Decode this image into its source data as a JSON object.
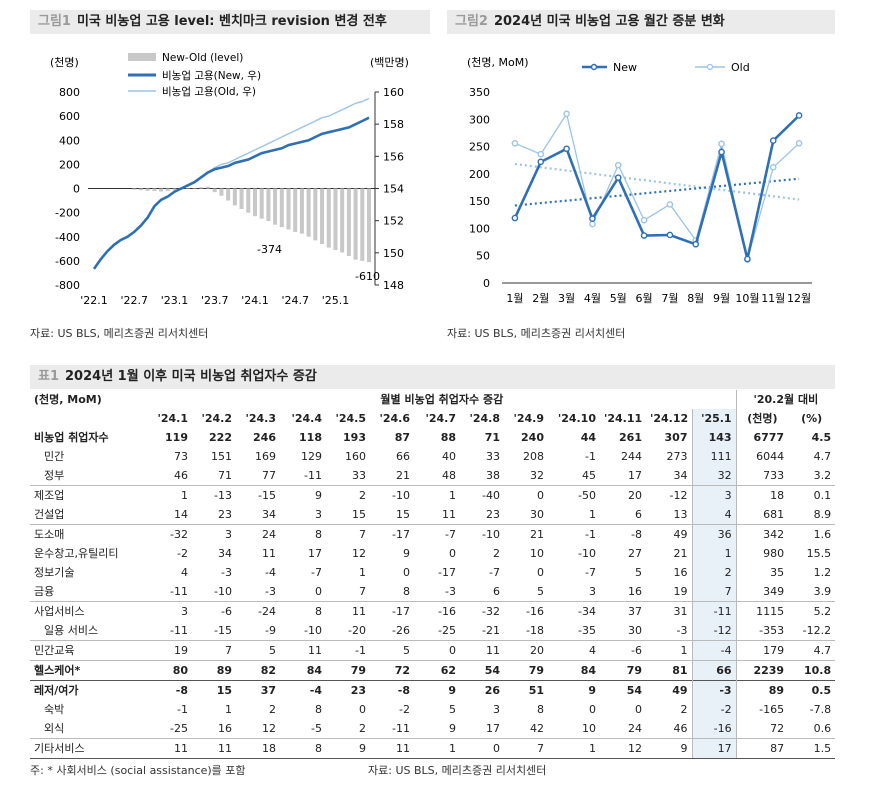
{
  "fig1": {
    "tag": "그림1",
    "title": "미국 비농업 고용 level: 벤치마크 revision 변경 전후",
    "left_unit": "(천명)",
    "right_unit": "(백만명)",
    "legend": [
      "New-Old (level)",
      "비농업 고용(New, 우)",
      "비농업 고용(Old, 우)"
    ],
    "annotations": [
      "-374",
      "-610"
    ],
    "source": "자료: US BLS, 메리츠증권 리서치센터",
    "colors": {
      "bar": "#c8c8c8",
      "new": "#2e6fb5",
      "old": "#9cc3e8"
    }
  },
  "fig2": {
    "tag": "그림2",
    "title": "2024년 미국 비농업 고용 월간 증분 변화",
    "unit": "(천명, MoM)",
    "legend": [
      "New",
      "Old"
    ],
    "source": "자료: US BLS, 메리츠증권 리서치센터",
    "colors": {
      "new": "#2e6fb5",
      "old": "#9cc3e8"
    }
  },
  "chart_data": [
    {
      "type": "bar",
      "x_ticks": [
        "'22.1",
        "'22.7",
        "'23.1",
        "'23.7",
        "'24.1",
        "'24.7",
        "'25.1"
      ],
      "y_left_ticks": [
        "800",
        "600",
        "400",
        "200",
        "0",
        "-200",
        "-400",
        "-600",
        "-800"
      ],
      "y_right_ticks": [
        "160",
        "158",
        "156",
        "154",
        "152",
        "150",
        "148"
      ],
      "ylim_left": [
        -800,
        800
      ],
      "ylim_right": [
        148,
        160
      ],
      "series": [
        {
          "name": "New-Old (level)",
          "type": "bar",
          "values": [
            0,
            0,
            0,
            0,
            0,
            0,
            -10,
            -15,
            -20,
            -20,
            -25,
            -20,
            -15,
            -10,
            -5,
            5,
            10,
            15,
            -30,
            -60,
            -100,
            -140,
            -170,
            -200,
            -230,
            -250,
            -270,
            -300,
            -320,
            -340,
            -360,
            -374,
            -400,
            -430,
            -460,
            -490,
            -510,
            -530,
            -560,
            -590,
            -600,
            -610
          ]
        },
        {
          "name": "비농업 고용(New, 우)",
          "type": "line",
          "values": [
            149.0,
            149.6,
            150.1,
            150.5,
            150.8,
            151.0,
            151.3,
            151.7,
            152.2,
            152.9,
            153.3,
            153.5,
            153.8,
            154.0,
            154.2,
            154.4,
            154.7,
            155.0,
            155.2,
            155.3,
            155.4,
            155.6,
            155.7,
            155.8,
            156.0,
            156.2,
            156.3,
            156.4,
            156.5,
            156.7,
            156.8,
            156.9,
            157.0,
            157.2,
            157.4,
            157.5,
            157.6,
            157.7,
            157.8,
            158.0,
            158.2,
            158.4
          ]
        },
        {
          "name": "비농업 고용(Old, 우)",
          "type": "line",
          "values": [
            149.0,
            149.6,
            150.1,
            150.5,
            150.8,
            151.0,
            151.3,
            151.7,
            152.2,
            152.9,
            153.3,
            153.5,
            153.8,
            154.0,
            154.2,
            154.4,
            154.7,
            155.0,
            155.3,
            155.5,
            155.6,
            155.8,
            156.0,
            156.2,
            156.4,
            156.6,
            156.8,
            157.0,
            157.2,
            157.4,
            157.6,
            157.8,
            158.0,
            158.2,
            158.4,
            158.5,
            158.7,
            158.9,
            159.1,
            159.3,
            159.4,
            159.6
          ]
        }
      ]
    },
    {
      "type": "line",
      "categories": [
        "1월",
        "2월",
        "3월",
        "4월",
        "5월",
        "6월",
        "7월",
        "8월",
        "9월",
        "10월",
        "11월",
        "12월"
      ],
      "y_ticks": [
        "350",
        "300",
        "250",
        "200",
        "150",
        "100",
        "50",
        "0"
      ],
      "ylim": [
        0,
        350
      ],
      "series": [
        {
          "name": "New",
          "values": [
            119,
            222,
            246,
            118,
            193,
            87,
            88,
            71,
            240,
            44,
            261,
            307
          ]
        },
        {
          "name": "Old",
          "values": [
            256,
            236,
            310,
            108,
            216,
            115,
            144,
            78,
            255,
            43,
            212,
            256
          ]
        }
      ],
      "trend": {
        "new": [
          142,
          191
        ],
        "old": [
          218,
          153
        ]
      }
    }
  ],
  "table": {
    "tag": "표1",
    "title": "2024년 1월 이후 미국 비농업 취업자수 증감",
    "unit": "(천명, MoM)",
    "group_header": "월별 비농업 취업자수 증감",
    "cmp_header": "'20.2월 대비",
    "columns": [
      "'24.1",
      "'24.2",
      "'24.3",
      "'24.4",
      "'24.5",
      "'24.6",
      "'24.7",
      "'24.8",
      "'24.9",
      "'24.10",
      "'24.11",
      "'24.12",
      "'25.1",
      "(천명)",
      "(%)"
    ],
    "rows": [
      {
        "label": "비농업 취업자수",
        "bold": true,
        "values": [
          "119",
          "222",
          "246",
          "118",
          "193",
          "87",
          "88",
          "71",
          "240",
          "44",
          "261",
          "307",
          "143",
          "6777",
          "4.5"
        ]
      },
      {
        "label": "민간",
        "sub": true,
        "values": [
          "73",
          "151",
          "169",
          "129",
          "160",
          "66",
          "40",
          "33",
          "208",
          "-1",
          "244",
          "273",
          "111",
          "6044",
          "4.7"
        ]
      },
      {
        "label": "정부",
        "sub": true,
        "values": [
          "46",
          "71",
          "77",
          "-11",
          "33",
          "21",
          "48",
          "38",
          "32",
          "45",
          "17",
          "34",
          "32",
          "733",
          "3.2"
        ]
      },
      {
        "label": "제조업",
        "values": [
          "1",
          "-13",
          "-15",
          "9",
          "2",
          "-10",
          "1",
          "-40",
          "0",
          "-50",
          "20",
          "-12",
          "3",
          "18",
          "0.1"
        ],
        "line": "thin"
      },
      {
        "label": "건설업",
        "values": [
          "14",
          "23",
          "34",
          "3",
          "15",
          "15",
          "11",
          "23",
          "30",
          "1",
          "6",
          "13",
          "4",
          "681",
          "8.9"
        ]
      },
      {
        "label": "도소매",
        "values": [
          "-32",
          "3",
          "24",
          "8",
          "7",
          "-17",
          "-7",
          "-10",
          "21",
          "-1",
          "-8",
          "49",
          "36",
          "342",
          "1.6"
        ],
        "line": "thin"
      },
      {
        "label": "운수창고,유틸리티",
        "values": [
          "-2",
          "34",
          "11",
          "17",
          "12",
          "9",
          "0",
          "2",
          "10",
          "-10",
          "27",
          "21",
          "1",
          "980",
          "15.5"
        ]
      },
      {
        "label": "정보기술",
        "values": [
          "4",
          "-3",
          "-4",
          "-7",
          "1",
          "0",
          "-17",
          "-7",
          "0",
          "-7",
          "5",
          "16",
          "2",
          "35",
          "1.2"
        ]
      },
      {
        "label": "금융",
        "values": [
          "-11",
          "-10",
          "-3",
          "0",
          "7",
          "8",
          "-3",
          "6",
          "5",
          "3",
          "16",
          "19",
          "7",
          "349",
          "3.9"
        ]
      },
      {
        "label": "사업서비스",
        "values": [
          "3",
          "-6",
          "-24",
          "8",
          "11",
          "-17",
          "-16",
          "-32",
          "-16",
          "-34",
          "37",
          "31",
          "-11",
          "1115",
          "5.2"
        ],
        "line": "thin"
      },
      {
        "label": "일용 서비스",
        "sub": true,
        "values": [
          "-11",
          "-15",
          "-9",
          "-10",
          "-20",
          "-26",
          "-25",
          "-21",
          "-18",
          "-35",
          "30",
          "-3",
          "-12",
          "-353",
          "-12.2"
        ]
      },
      {
        "label": "민간교육",
        "values": [
          "19",
          "7",
          "5",
          "11",
          "-1",
          "5",
          "0",
          "11",
          "20",
          "4",
          "-6",
          "1",
          "-4",
          "179",
          "4.7"
        ],
        "line": "thin"
      },
      {
        "label": "헬스케어*",
        "bold": true,
        "values": [
          "80",
          "89",
          "82",
          "84",
          "79",
          "72",
          "62",
          "54",
          "79",
          "84",
          "79",
          "81",
          "66",
          "2239",
          "10.8"
        ],
        "line": "thin"
      },
      {
        "label": "레저/여가",
        "bold": true,
        "values": [
          "-8",
          "15",
          "37",
          "-4",
          "23",
          "-8",
          "9",
          "26",
          "51",
          "9",
          "54",
          "49",
          "-3",
          "89",
          "0.5"
        ],
        "line": "thick"
      },
      {
        "label": "숙박",
        "sub": true,
        "values": [
          "-1",
          "1",
          "2",
          "8",
          "0",
          "-2",
          "5",
          "3",
          "8",
          "0",
          "0",
          "2",
          "-2",
          "-165",
          "-7.8"
        ]
      },
      {
        "label": "외식",
        "sub": true,
        "values": [
          "-25",
          "16",
          "12",
          "-5",
          "2",
          "-11",
          "9",
          "17",
          "42",
          "10",
          "24",
          "46",
          "-16",
          "72",
          "0.6"
        ]
      },
      {
        "label": "기타서비스",
        "values": [
          "11",
          "11",
          "18",
          "8",
          "9",
          "11",
          "1",
          "0",
          "7",
          "1",
          "12",
          "9",
          "17",
          "87",
          "1.5"
        ],
        "line": "thin"
      }
    ],
    "footnote": "주: * 사회서비스 (social assistance)를 포함",
    "source": "자료: US BLS, 메리츠증권 리서치센터"
  }
}
